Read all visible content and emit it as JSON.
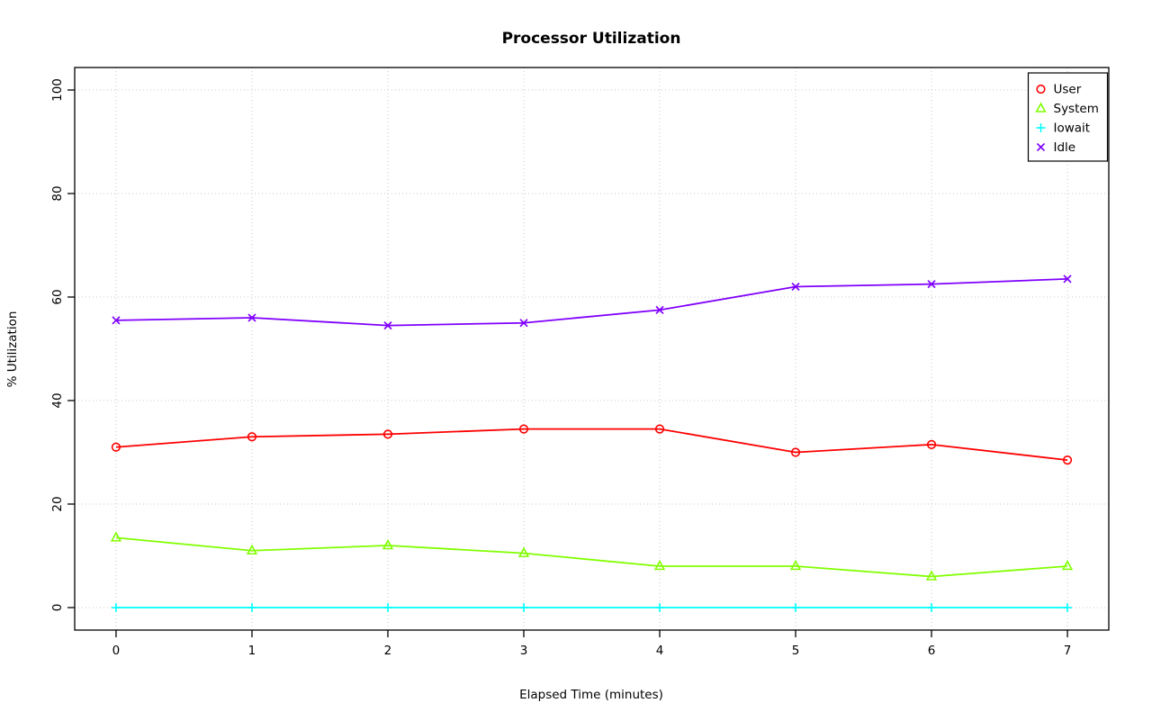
{
  "chart_data": {
    "type": "line",
    "title": "Processor Utilization",
    "xlabel": "Elapsed Time (minutes)",
    "ylabel": "% Utilization",
    "x": [
      0,
      1,
      2,
      3,
      4,
      5,
      6,
      7
    ],
    "xlim": [
      0,
      7
    ],
    "ylim": [
      0,
      100
    ],
    "xticks": [
      0,
      1,
      2,
      3,
      4,
      5,
      6,
      7
    ],
    "yticks": [
      0,
      20,
      40,
      60,
      80,
      100
    ],
    "grid": true,
    "grid_color": "#c8c8c8",
    "legend_position": "top-right",
    "series": [
      {
        "name": "User",
        "color": "#FF0000",
        "marker": "circle",
        "values": [
          31.0,
          33.0,
          33.5,
          34.5,
          34.5,
          30.0,
          31.5,
          28.5
        ]
      },
      {
        "name": "System",
        "color": "#80FF00",
        "marker": "triangle",
        "values": [
          13.5,
          11.0,
          12.0,
          10.5,
          8.0,
          8.0,
          6.0,
          8.0
        ]
      },
      {
        "name": "Iowait",
        "color": "#00FFFF",
        "marker": "plus",
        "values": [
          0,
          0,
          0,
          0,
          0,
          0,
          0,
          0
        ]
      },
      {
        "name": "Idle",
        "color": "#8000FF",
        "marker": "x",
        "values": [
          55.5,
          56.0,
          54.5,
          55.0,
          57.5,
          62.0,
          62.5,
          63.5
        ]
      }
    ]
  }
}
